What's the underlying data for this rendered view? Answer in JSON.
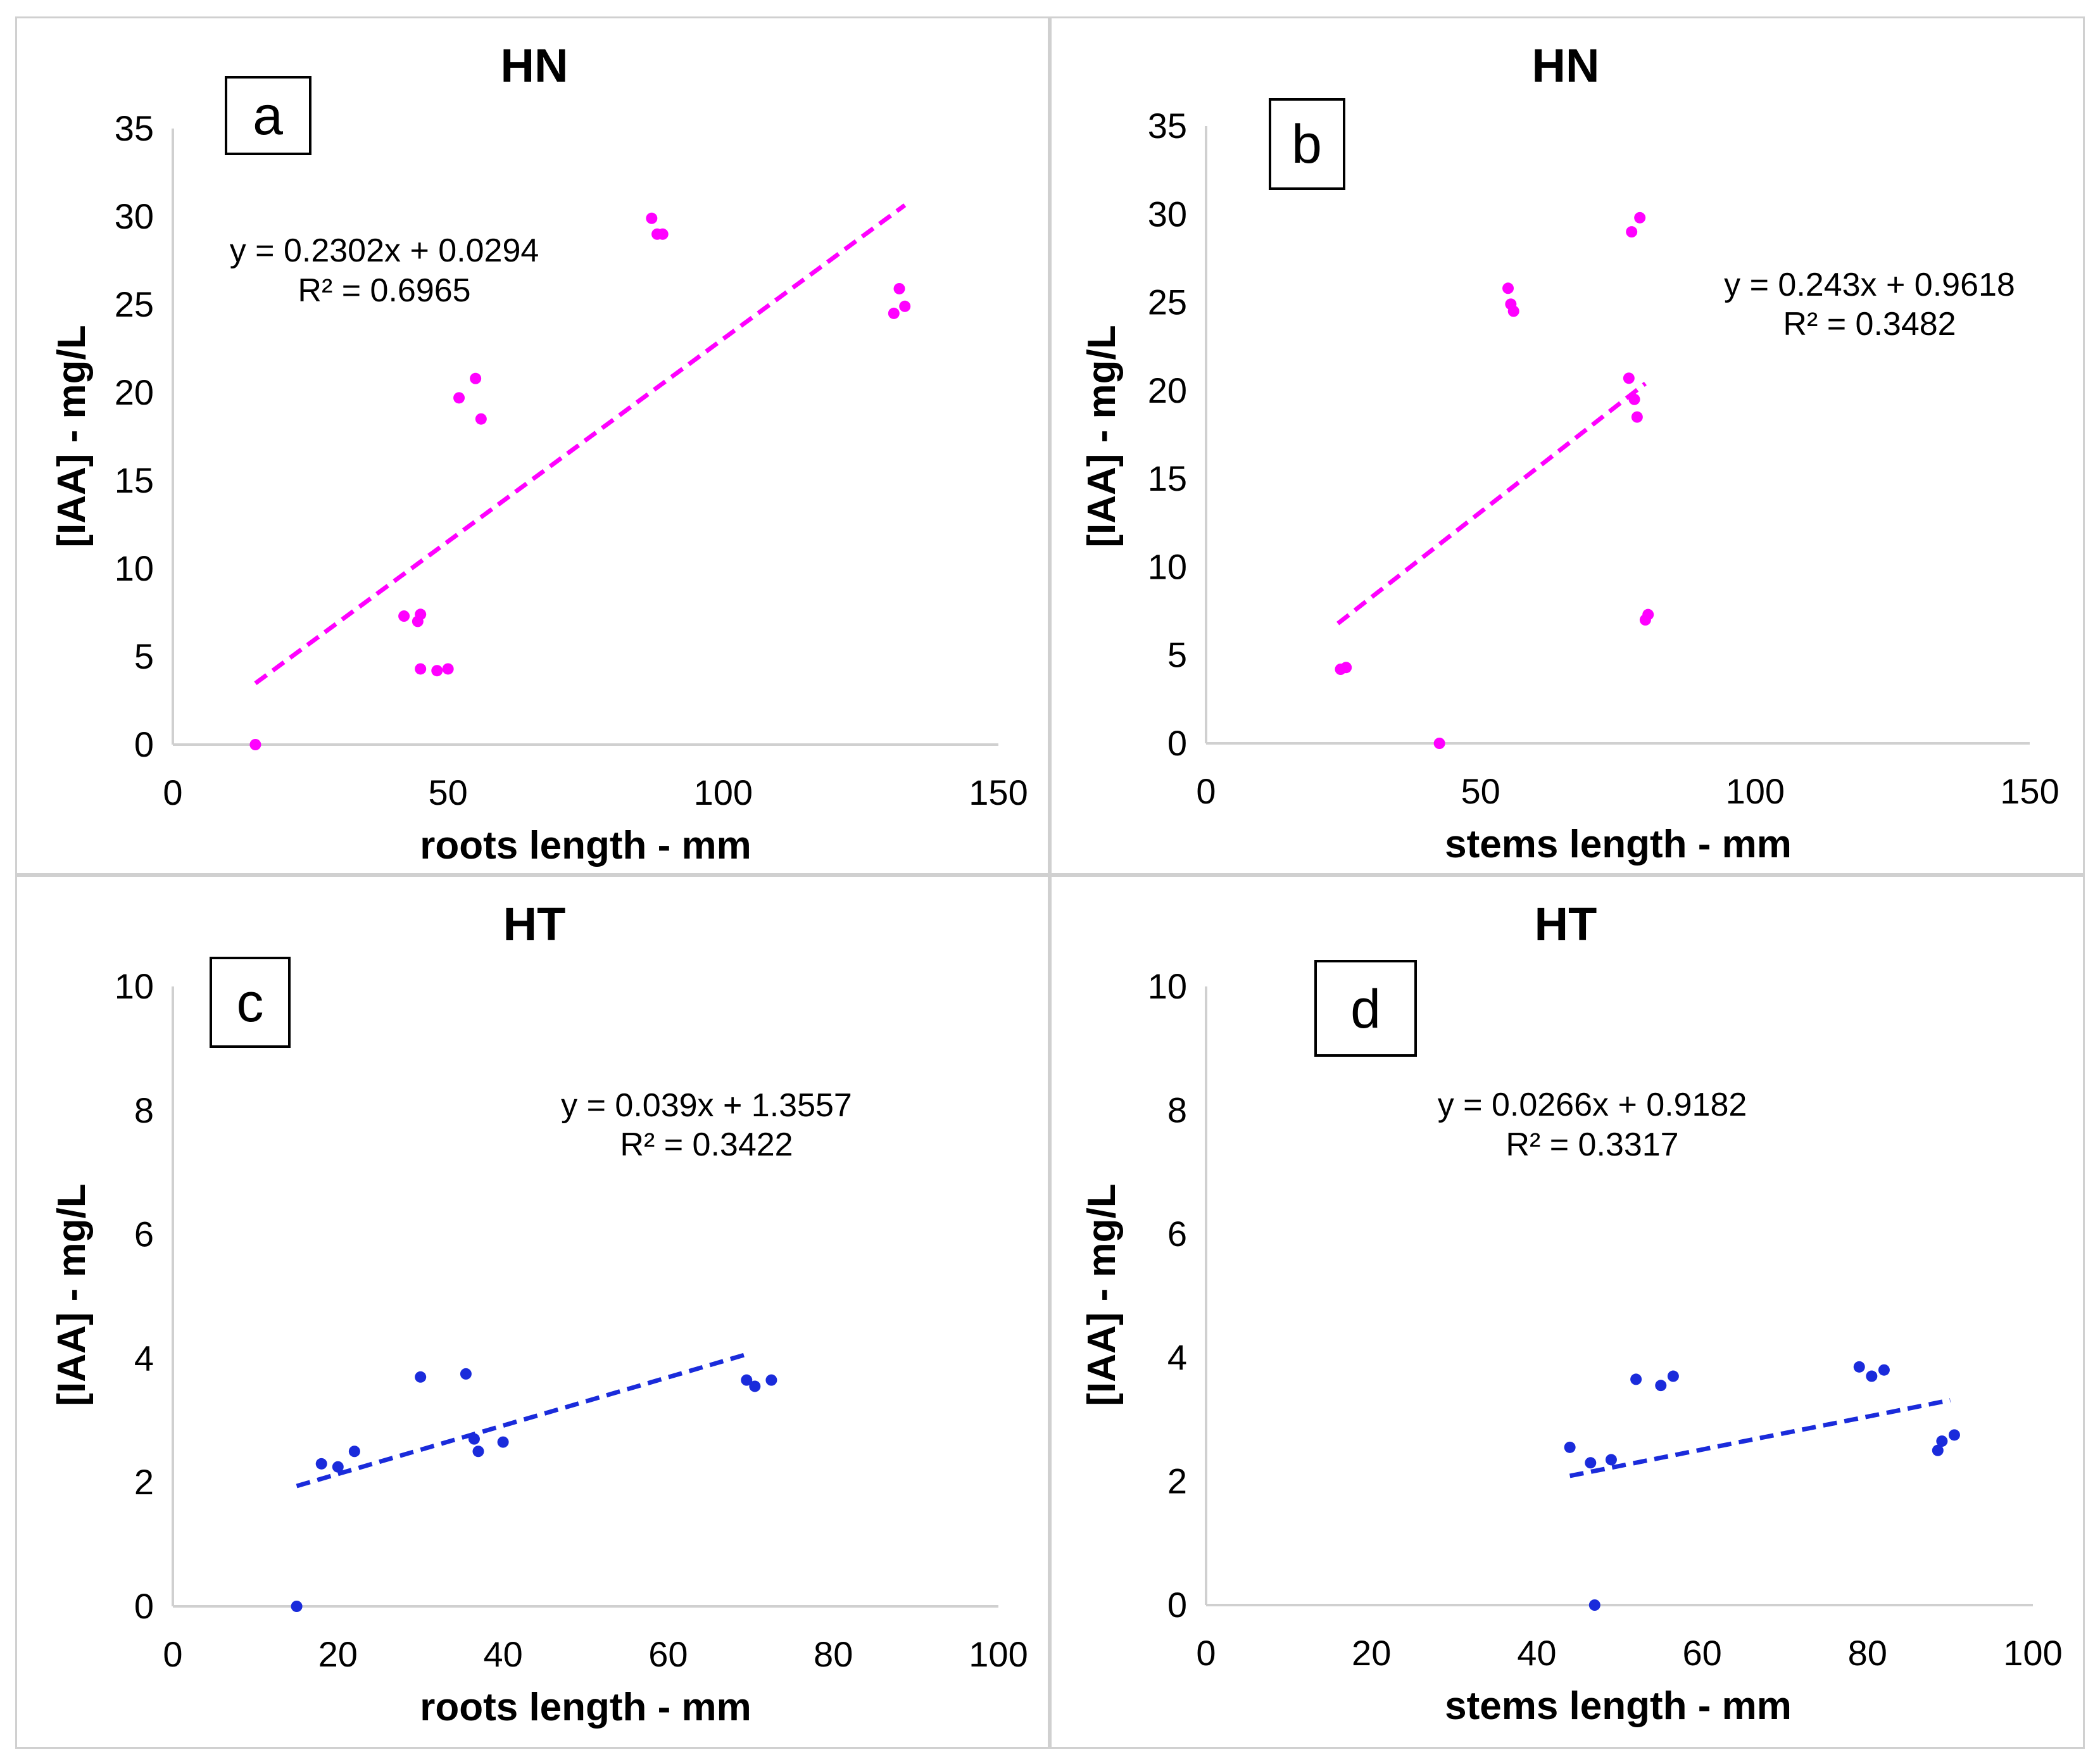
{
  "chart_data": [
    {
      "type": "scatter",
      "panel_letter": "a",
      "title": "HN",
      "xlabel": "roots length - mm",
      "ylabel": "[IAA] - mg/L",
      "xlim": [
        0,
        150
      ],
      "ylim": [
        0,
        35
      ],
      "xticks": [
        "0",
        "50",
        "100",
        "150"
      ],
      "yticks": [
        "0",
        "5",
        "10",
        "15",
        "20",
        "25",
        "30",
        "35"
      ],
      "point_color": "#ff00ff",
      "x": [
        15,
        42,
        45,
        44.5,
        45,
        48,
        50,
        52,
        55,
        56,
        87,
        88,
        89,
        131,
        132,
        133
      ],
      "y": [
        0,
        7.3,
        7.4,
        7.0,
        4.3,
        4.2,
        4.3,
        19.7,
        20.8,
        18.5,
        29.9,
        29.0,
        29.0,
        24.5,
        25.9,
        24.9
      ],
      "trendline": {
        "slope": 0.2302,
        "intercept": 0.0294,
        "x_range": [
          15,
          133
        ]
      },
      "equation": "y = 0.2302x + 0.0294",
      "r2": "R² = 0.6965"
    },
    {
      "type": "scatter",
      "panel_letter": "b",
      "title": "HN",
      "xlabel": "stems length - mm",
      "ylabel": "[IAA] - mg/L",
      "xlim": [
        0,
        150
      ],
      "ylim": [
        0,
        35
      ],
      "xticks": [
        "0",
        "50",
        "100",
        "150"
      ],
      "yticks": [
        "0",
        "5",
        "10",
        "15",
        "20",
        "25",
        "30",
        "35"
      ],
      "point_color": "#ff00ff",
      "x": [
        24.5,
        25.5,
        42.5,
        55,
        55.5,
        56,
        77,
        77.5,
        78,
        78.5,
        79,
        80,
        80.5
      ],
      "y": [
        4.2,
        4.3,
        0,
        25.8,
        24.9,
        24.5,
        20.7,
        29.0,
        19.5,
        18.5,
        29.8,
        7.0,
        7.3
      ],
      "trendline": {
        "slope": 0.243,
        "intercept": 0.9618,
        "x_range": [
          24,
          80
        ]
      },
      "equation": "y = 0.243x + 0.9618",
      "r2": "R² = 0.3482"
    },
    {
      "type": "scatter",
      "panel_letter": "c",
      "title": "HT",
      "xlabel": "roots length - mm",
      "ylabel": "[IAA] - mg/L",
      "xlim": [
        0,
        100
      ],
      "ylim": [
        0,
        10
      ],
      "xticks": [
        "0",
        "20",
        "40",
        "60",
        "80",
        "100"
      ],
      "yticks": [
        "0",
        "2",
        "4",
        "6",
        "8",
        "10"
      ],
      "point_color": "#1a2bdb",
      "x": [
        15,
        18,
        20,
        22,
        30,
        35.5,
        36.5,
        37,
        40,
        69.5,
        70.5,
        72.5
      ],
      "y": [
        0,
        2.3,
        2.25,
        2.5,
        3.7,
        3.75,
        2.7,
        2.5,
        2.65,
        3.65,
        3.55,
        3.65
      ],
      "trendline": {
        "slope": 0.039,
        "intercept": 1.3557,
        "x_range": [
          15,
          70
        ]
      },
      "equation": "y = 0.039x + 1.3557",
      "r2": "R² = 0.3422"
    },
    {
      "type": "scatter",
      "panel_letter": "d",
      "title": "HT",
      "xlabel": "stems length - mm",
      "ylabel": "[IAA] - mg/L",
      "xlim": [
        0,
        100
      ],
      "ylim": [
        0,
        10
      ],
      "xticks": [
        "0",
        "20",
        "40",
        "60",
        "80",
        "100"
      ],
      "yticks": [
        "0",
        "2",
        "4",
        "6",
        "8",
        "10"
      ],
      "point_color": "#1a2bdb",
      "x": [
        44,
        46.5,
        47,
        49,
        52,
        55,
        56.5,
        79,
        80.5,
        82,
        88.5,
        89,
        90.5
      ],
      "y": [
        2.55,
        2.3,
        0,
        2.35,
        3.65,
        3.55,
        3.7,
        3.85,
        3.7,
        3.8,
        2.5,
        2.65,
        2.75
      ],
      "trendline": {
        "slope": 0.0266,
        "intercept": 0.9182,
        "x_range": [
          44,
          90
        ]
      },
      "equation": "y = 0.0266x + 0.9182",
      "r2": "R² = 0.3317"
    }
  ]
}
